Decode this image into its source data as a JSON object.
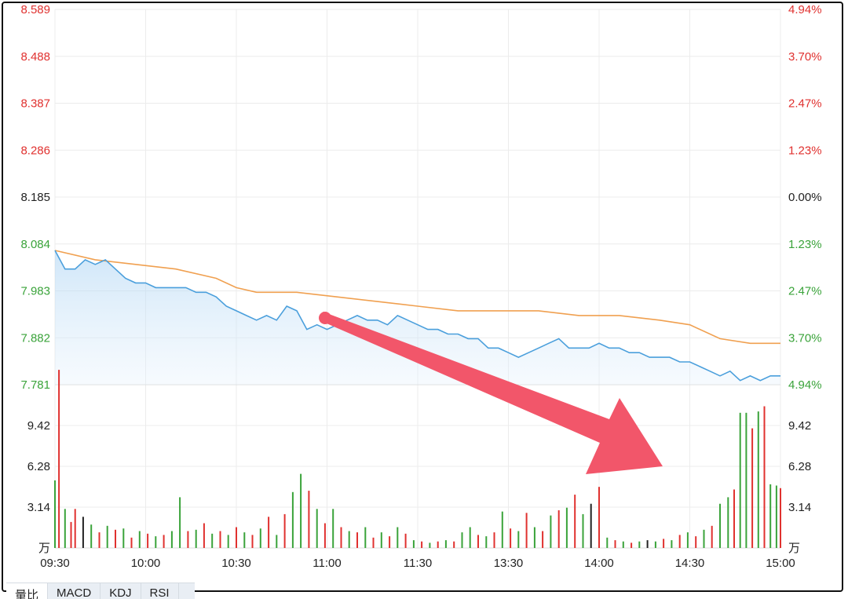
{
  "chart_data": {
    "type": "line",
    "title": "",
    "price_axis": {
      "ticks": [
        "8.589",
        "8.488",
        "8.387",
        "8.286",
        "8.185",
        "8.084",
        "7.983",
        "7.882",
        "7.781"
      ],
      "values": [
        8.589,
        8.488,
        8.387,
        8.286,
        8.185,
        8.084,
        7.983,
        7.882,
        7.781
      ],
      "prev_close": 8.185
    },
    "percent_axis": {
      "ticks": [
        "4.94%",
        "3.70%",
        "2.47%",
        "1.23%",
        "0.00%",
        "1.23%",
        "2.47%",
        "3.70%",
        "4.94%"
      ]
    },
    "volume_axis": {
      "ticks": [
        "9.42",
        "6.28",
        "3.14"
      ],
      "values": [
        9.42,
        6.28,
        3.14
      ],
      "unit": "万"
    },
    "x_ticks": [
      "09:30",
      "10:00",
      "10:30",
      "11:00",
      "11:30",
      "13:30",
      "14:00",
      "14:30",
      "15:00"
    ],
    "ylim": [
      7.781,
      8.589
    ],
    "grid": true,
    "series": [
      {
        "role": "price",
        "color": "#4a9fdc",
        "points": [
          [
            0,
            8.07
          ],
          [
            5,
            8.03
          ],
          [
            10,
            8.03
          ],
          [
            15,
            8.05
          ],
          [
            20,
            8.04
          ],
          [
            25,
            8.05
          ],
          [
            30,
            8.03
          ],
          [
            35,
            8.01
          ],
          [
            40,
            8.0
          ],
          [
            45,
            8.0
          ],
          [
            50,
            7.99
          ],
          [
            55,
            7.99
          ],
          [
            60,
            7.99
          ],
          [
            65,
            7.99
          ],
          [
            70,
            7.98
          ],
          [
            75,
            7.98
          ],
          [
            80,
            7.97
          ],
          [
            85,
            7.95
          ],
          [
            90,
            7.94
          ],
          [
            95,
            7.93
          ],
          [
            100,
            7.92
          ],
          [
            105,
            7.93
          ],
          [
            110,
            7.92
          ],
          [
            115,
            7.95
          ],
          [
            120,
            7.94
          ],
          [
            125,
            7.9
          ],
          [
            130,
            7.91
          ],
          [
            135,
            7.9
          ],
          [
            140,
            7.91
          ],
          [
            145,
            7.92
          ],
          [
            150,
            7.93
          ],
          [
            155,
            7.92
          ],
          [
            160,
            7.92
          ],
          [
            165,
            7.91
          ],
          [
            170,
            7.93
          ],
          [
            175,
            7.92
          ],
          [
            180,
            7.91
          ],
          [
            185,
            7.9
          ],
          [
            190,
            7.9
          ],
          [
            195,
            7.89
          ],
          [
            200,
            7.89
          ],
          [
            205,
            7.88
          ],
          [
            210,
            7.88
          ],
          [
            215,
            7.86
          ],
          [
            220,
            7.86
          ],
          [
            225,
            7.85
          ],
          [
            230,
            7.84
          ],
          [
            235,
            7.85
          ],
          [
            240,
            7.86
          ],
          [
            245,
            7.87
          ],
          [
            250,
            7.88
          ],
          [
            255,
            7.86
          ],
          [
            260,
            7.86
          ],
          [
            265,
            7.86
          ],
          [
            270,
            7.87
          ],
          [
            275,
            7.86
          ],
          [
            280,
            7.86
          ],
          [
            285,
            7.85
          ],
          [
            290,
            7.85
          ],
          [
            295,
            7.84
          ],
          [
            300,
            7.84
          ],
          [
            305,
            7.84
          ],
          [
            310,
            7.83
          ],
          [
            315,
            7.83
          ],
          [
            320,
            7.82
          ],
          [
            325,
            7.81
          ],
          [
            330,
            7.8
          ],
          [
            335,
            7.81
          ],
          [
            340,
            7.79
          ],
          [
            345,
            7.8
          ],
          [
            350,
            7.79
          ],
          [
            355,
            7.8
          ],
          [
            360,
            7.8
          ]
        ]
      },
      {
        "role": "average",
        "color": "#f0a050",
        "points": [
          [
            0,
            8.07
          ],
          [
            20,
            8.05
          ],
          [
            40,
            8.04
          ],
          [
            60,
            8.03
          ],
          [
            80,
            8.01
          ],
          [
            90,
            7.99
          ],
          [
            100,
            7.98
          ],
          [
            120,
            7.98
          ],
          [
            140,
            7.97
          ],
          [
            160,
            7.96
          ],
          [
            180,
            7.95
          ],
          [
            200,
            7.94
          ],
          [
            220,
            7.94
          ],
          [
            240,
            7.94
          ],
          [
            260,
            7.93
          ],
          [
            280,
            7.93
          ],
          [
            300,
            7.92
          ],
          [
            315,
            7.91
          ],
          [
            330,
            7.88
          ],
          [
            345,
            7.87
          ],
          [
            360,
            7.87
          ]
        ]
      }
    ],
    "volume_bars": [
      {
        "t": 0,
        "v": 5.2,
        "c": "green"
      },
      {
        "t": 2,
        "v": 13.7,
        "c": "red"
      },
      {
        "t": 5,
        "v": 3.0,
        "c": "green"
      },
      {
        "t": 8,
        "v": 2.0,
        "c": "red"
      },
      {
        "t": 10,
        "v": 3.0,
        "c": "red"
      },
      {
        "t": 14,
        "v": 2.4,
        "c": "black"
      },
      {
        "t": 18,
        "v": 1.8,
        "c": "green"
      },
      {
        "t": 22,
        "v": 1.2,
        "c": "red"
      },
      {
        "t": 26,
        "v": 1.7,
        "c": "green"
      },
      {
        "t": 30,
        "v": 1.4,
        "c": "red"
      },
      {
        "t": 34,
        "v": 1.5,
        "c": "green"
      },
      {
        "t": 38,
        "v": 0.8,
        "c": "red"
      },
      {
        "t": 42,
        "v": 1.3,
        "c": "green"
      },
      {
        "t": 46,
        "v": 1.1,
        "c": "red"
      },
      {
        "t": 50,
        "v": 0.9,
        "c": "green"
      },
      {
        "t": 54,
        "v": 1.0,
        "c": "red"
      },
      {
        "t": 58,
        "v": 1.3,
        "c": "green"
      },
      {
        "t": 62,
        "v": 3.9,
        "c": "green"
      },
      {
        "t": 66,
        "v": 1.3,
        "c": "red"
      },
      {
        "t": 70,
        "v": 1.4,
        "c": "green"
      },
      {
        "t": 74,
        "v": 1.9,
        "c": "red"
      },
      {
        "t": 78,
        "v": 1.1,
        "c": "green"
      },
      {
        "t": 82,
        "v": 1.3,
        "c": "red"
      },
      {
        "t": 86,
        "v": 1.0,
        "c": "green"
      },
      {
        "t": 90,
        "v": 1.6,
        "c": "red"
      },
      {
        "t": 94,
        "v": 1.2,
        "c": "green"
      },
      {
        "t": 98,
        "v": 1.0,
        "c": "red"
      },
      {
        "t": 102,
        "v": 1.5,
        "c": "green"
      },
      {
        "t": 106,
        "v": 2.4,
        "c": "red"
      },
      {
        "t": 110,
        "v": 1.0,
        "c": "green"
      },
      {
        "t": 114,
        "v": 2.6,
        "c": "red"
      },
      {
        "t": 118,
        "v": 4.3,
        "c": "green"
      },
      {
        "t": 122,
        "v": 5.7,
        "c": "green"
      },
      {
        "t": 126,
        "v": 4.4,
        "c": "red"
      },
      {
        "t": 130,
        "v": 3.0,
        "c": "green"
      },
      {
        "t": 134,
        "v": 1.9,
        "c": "red"
      },
      {
        "t": 138,
        "v": 3.0,
        "c": "green"
      },
      {
        "t": 142,
        "v": 1.6,
        "c": "red"
      },
      {
        "t": 146,
        "v": 1.3,
        "c": "green"
      },
      {
        "t": 150,
        "v": 1.2,
        "c": "red"
      },
      {
        "t": 154,
        "v": 1.6,
        "c": "green"
      },
      {
        "t": 158,
        "v": 0.8,
        "c": "red"
      },
      {
        "t": 162,
        "v": 1.2,
        "c": "green"
      },
      {
        "t": 166,
        "v": 0.9,
        "c": "red"
      },
      {
        "t": 170,
        "v": 1.6,
        "c": "green"
      },
      {
        "t": 174,
        "v": 1.1,
        "c": "red"
      },
      {
        "t": 178,
        "v": 0.6,
        "c": "green"
      },
      {
        "t": 182,
        "v": 0.5,
        "c": "red"
      },
      {
        "t": 186,
        "v": 0.4,
        "c": "green"
      },
      {
        "t": 190,
        "v": 0.5,
        "c": "red"
      },
      {
        "t": 194,
        "v": 0.6,
        "c": "green"
      },
      {
        "t": 198,
        "v": 0.5,
        "c": "red"
      },
      {
        "t": 202,
        "v": 1.2,
        "c": "green"
      },
      {
        "t": 206,
        "v": 1.6,
        "c": "green"
      },
      {
        "t": 210,
        "v": 1.0,
        "c": "red"
      },
      {
        "t": 214,
        "v": 0.9,
        "c": "green"
      },
      {
        "t": 218,
        "v": 1.2,
        "c": "red"
      },
      {
        "t": 222,
        "v": 2.8,
        "c": "green"
      },
      {
        "t": 226,
        "v": 1.5,
        "c": "red"
      },
      {
        "t": 230,
        "v": 1.3,
        "c": "green"
      },
      {
        "t": 234,
        "v": 2.7,
        "c": "red"
      },
      {
        "t": 238,
        "v": 1.6,
        "c": "green"
      },
      {
        "t": 242,
        "v": 1.3,
        "c": "red"
      },
      {
        "t": 246,
        "v": 2.5,
        "c": "green"
      },
      {
        "t": 250,
        "v": 2.9,
        "c": "red"
      },
      {
        "t": 254,
        "v": 3.1,
        "c": "green"
      },
      {
        "t": 258,
        "v": 4.1,
        "c": "red"
      },
      {
        "t": 262,
        "v": 2.6,
        "c": "green"
      },
      {
        "t": 266,
        "v": 3.4,
        "c": "black"
      },
      {
        "t": 270,
        "v": 4.7,
        "c": "red"
      },
      {
        "t": 274,
        "v": 0.8,
        "c": "green"
      },
      {
        "t": 278,
        "v": 0.6,
        "c": "red"
      },
      {
        "t": 282,
        "v": 0.5,
        "c": "green"
      },
      {
        "t": 286,
        "v": 0.4,
        "c": "red"
      },
      {
        "t": 290,
        "v": 0.5,
        "c": "green"
      },
      {
        "t": 294,
        "v": 0.6,
        "c": "black"
      },
      {
        "t": 298,
        "v": 0.5,
        "c": "green"
      },
      {
        "t": 302,
        "v": 0.7,
        "c": "red"
      },
      {
        "t": 306,
        "v": 0.6,
        "c": "green"
      },
      {
        "t": 310,
        "v": 1.0,
        "c": "red"
      },
      {
        "t": 314,
        "v": 1.2,
        "c": "green"
      },
      {
        "t": 318,
        "v": 0.9,
        "c": "red"
      },
      {
        "t": 322,
        "v": 1.4,
        "c": "green"
      },
      {
        "t": 326,
        "v": 1.7,
        "c": "red"
      },
      {
        "t": 330,
        "v": 3.4,
        "c": "green"
      },
      {
        "t": 334,
        "v": 3.9,
        "c": "green"
      },
      {
        "t": 337,
        "v": 4.5,
        "c": "red"
      },
      {
        "t": 340,
        "v": 10.4,
        "c": "green"
      },
      {
        "t": 343,
        "v": 10.4,
        "c": "green"
      },
      {
        "t": 346,
        "v": 9.2,
        "c": "red"
      },
      {
        "t": 349,
        "v": 10.5,
        "c": "green"
      },
      {
        "t": 352,
        "v": 10.9,
        "c": "red"
      },
      {
        "t": 355,
        "v": 4.9,
        "c": "green"
      },
      {
        "t": 358,
        "v": 4.8,
        "c": "green"
      },
      {
        "t": 360,
        "v": 4.6,
        "c": "red"
      }
    ]
  },
  "tabs": [
    "量比",
    "MACD",
    "KDJ",
    "RSI"
  ],
  "colors": {
    "up": "#e0312f",
    "down": "#3aa33a",
    "neutral": "#222222",
    "price_line": "#4a9fdc",
    "average_line": "#f0a050",
    "arrow": "#f2566a"
  }
}
